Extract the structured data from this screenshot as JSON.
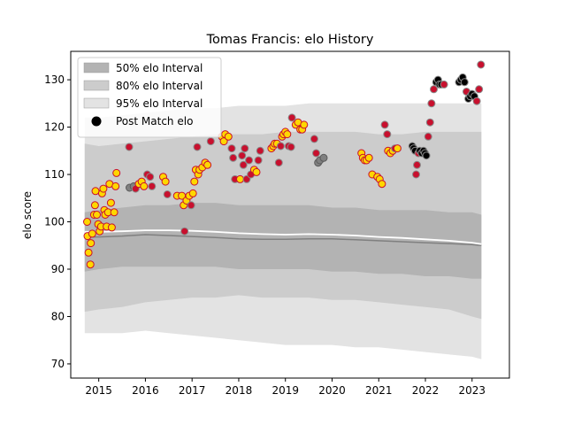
{
  "chart_data": {
    "type": "scatter",
    "title": "Tomas Francis: elo History",
    "xlabel": "",
    "ylabel": "elo score",
    "xlim": [
      2014.4,
      2023.8
    ],
    "ylim": [
      67,
      136
    ],
    "xticks": [
      2015,
      2016,
      2017,
      2018,
      2019,
      2020,
      2021,
      2022,
      2023
    ],
    "yticks": [
      70,
      80,
      90,
      100,
      110,
      120,
      130
    ],
    "grid": false,
    "legend_placement": "top-left",
    "legend": [
      {
        "label": "50% elo Interval",
        "color": "#b3b3b3"
      },
      {
        "label": "80% elo Interval",
        "color": "#cccccc"
      },
      {
        "label": "95% elo Interval",
        "color": "#e3e3e3"
      },
      {
        "label": "Post Match elo",
        "color": "#000000"
      }
    ],
    "colors": {
      "band95": "#e3e3e3",
      "band80": "#cccccc",
      "band50": "#b3b3b3",
      "median_line": "#808080",
      "mean_line": "#ffffff",
      "win_fill": "#ffd700",
      "loss_fill": "#c8102e",
      "neutral_fill": "#808080",
      "black_fill": "#000000"
    },
    "bands": {
      "x": [
        2014.7,
        2015.0,
        2015.5,
        2016.0,
        2016.5,
        2017.0,
        2017.5,
        2018.0,
        2018.5,
        2019.0,
        2019.5,
        2020.0,
        2020.5,
        2021.0,
        2021.5,
        2022.0,
        2022.5,
        2023.0,
        2023.2
      ],
      "lo95": [
        76.5,
        76.5,
        76.5,
        77.0,
        76.5,
        76.0,
        75.5,
        75.0,
        74.5,
        74.0,
        74.0,
        74.0,
        73.5,
        73.5,
        73.0,
        72.5,
        72.0,
        71.5,
        71.0
      ],
      "lo80": [
        81.0,
        81.5,
        82.0,
        83.0,
        83.5,
        84.0,
        84.0,
        84.5,
        84.0,
        84.0,
        84.0,
        83.5,
        83.5,
        83.0,
        82.5,
        82.0,
        81.5,
        80.0,
        79.5
      ],
      "lo50": [
        89.5,
        90.0,
        90.5,
        90.5,
        90.5,
        90.5,
        90.5,
        90.0,
        90.0,
        90.0,
        90.0,
        89.5,
        89.5,
        89.0,
        89.0,
        88.5,
        88.5,
        88.0,
        88.0
      ],
      "hi50": [
        102.0,
        102.5,
        103.0,
        103.5,
        103.5,
        104.0,
        104.0,
        103.5,
        103.5,
        103.5,
        103.5,
        103.0,
        103.0,
        102.5,
        102.5,
        102.5,
        102.0,
        102.0,
        101.5
      ],
      "hi80": [
        116.5,
        116.0,
        116.5,
        117.0,
        117.5,
        118.0,
        118.5,
        118.5,
        118.5,
        119.0,
        119.0,
        119.0,
        119.0,
        118.5,
        118.5,
        119.0,
        119.0,
        119.0,
        119.0
      ],
      "hi95": [
        122.0,
        122.0,
        122.5,
        123.0,
        123.5,
        124.0,
        124.0,
        124.5,
        124.5,
        124.5,
        125.0,
        125.0,
        125.0,
        125.0,
        125.0,
        125.0,
        125.0,
        125.0,
        125.0
      ],
      "median": [
        96.8,
        96.8,
        97.0,
        97.3,
        97.1,
        96.9,
        96.7,
        96.4,
        96.3,
        96.3,
        96.4,
        96.4,
        96.2,
        96.0,
        95.8,
        95.6,
        95.4,
        95.2,
        95.0
      ],
      "mean": [
        97.9,
        97.9,
        98.0,
        98.2,
        98.2,
        98.1,
        97.9,
        97.6,
        97.4,
        97.3,
        97.4,
        97.3,
        97.1,
        96.8,
        96.6,
        96.3,
        96.0,
        95.6,
        95.3
      ]
    },
    "series": [
      {
        "name": "Post Match elo",
        "points": [
          {
            "x": 2014.75,
            "y": 100.0,
            "c": "w"
          },
          {
            "x": 2014.76,
            "y": 97.0,
            "c": "w"
          },
          {
            "x": 2014.78,
            "y": 93.5,
            "c": "w"
          },
          {
            "x": 2014.82,
            "y": 91.0,
            "c": "w"
          },
          {
            "x": 2014.83,
            "y": 95.5,
            "c": "w"
          },
          {
            "x": 2014.86,
            "y": 97.5,
            "c": "w"
          },
          {
            "x": 2014.9,
            "y": 101.5,
            "c": "w"
          },
          {
            "x": 2014.92,
            "y": 103.5,
            "c": "w"
          },
          {
            "x": 2014.93,
            "y": 106.5,
            "c": "w"
          },
          {
            "x": 2014.96,
            "y": 101.5,
            "c": "w"
          },
          {
            "x": 2014.99,
            "y": 99.5,
            "c": "w"
          },
          {
            "x": 2015.02,
            "y": 98.0,
            "c": "w"
          },
          {
            "x": 2015.05,
            "y": 99.0,
            "c": "w"
          },
          {
            "x": 2015.07,
            "y": 106.0,
            "c": "w"
          },
          {
            "x": 2015.1,
            "y": 107.0,
            "c": "w"
          },
          {
            "x": 2015.12,
            "y": 102.5,
            "c": "w"
          },
          {
            "x": 2015.14,
            "y": 101.5,
            "c": "w"
          },
          {
            "x": 2015.17,
            "y": 99.0,
            "c": "w"
          },
          {
            "x": 2015.2,
            "y": 102.0,
            "c": "w"
          },
          {
            "x": 2015.23,
            "y": 108.0,
            "c": "w"
          },
          {
            "x": 2015.26,
            "y": 104.0,
            "c": "w"
          },
          {
            "x": 2015.28,
            "y": 98.8,
            "c": "w"
          },
          {
            "x": 2015.33,
            "y": 102.0,
            "c": "w"
          },
          {
            "x": 2015.36,
            "y": 107.5,
            "c": "w"
          },
          {
            "x": 2015.38,
            "y": 110.3,
            "c": "w"
          },
          {
            "x": 2015.65,
            "y": 115.8,
            "c": "l"
          },
          {
            "x": 2015.66,
            "y": 107.2,
            "c": "g"
          },
          {
            "x": 2015.75,
            "y": 107.5,
            "c": "g"
          },
          {
            "x": 2015.79,
            "y": 107.0,
            "c": "l"
          },
          {
            "x": 2015.86,
            "y": 108.0,
            "c": "w"
          },
          {
            "x": 2015.92,
            "y": 108.5,
            "c": "w"
          },
          {
            "x": 2015.97,
            "y": 107.5,
            "c": "w"
          },
          {
            "x": 2016.04,
            "y": 110.0,
            "c": "l"
          },
          {
            "x": 2016.1,
            "y": 109.5,
            "c": "l"
          },
          {
            "x": 2016.14,
            "y": 107.5,
            "c": "l"
          },
          {
            "x": 2016.38,
            "y": 109.5,
            "c": "w"
          },
          {
            "x": 2016.43,
            "y": 108.5,
            "c": "w"
          },
          {
            "x": 2016.47,
            "y": 105.8,
            "c": "l"
          },
          {
            "x": 2016.68,
            "y": 105.5,
            "c": "w"
          },
          {
            "x": 2016.78,
            "y": 105.5,
            "c": "w"
          },
          {
            "x": 2016.82,
            "y": 103.5,
            "c": "w"
          },
          {
            "x": 2016.84,
            "y": 98.0,
            "c": "l"
          },
          {
            "x": 2016.88,
            "y": 104.5,
            "c": "w"
          },
          {
            "x": 2016.94,
            "y": 105.5,
            "c": "w"
          },
          {
            "x": 2016.98,
            "y": 103.5,
            "c": "l"
          },
          {
            "x": 2017.02,
            "y": 106.0,
            "c": "w"
          },
          {
            "x": 2017.05,
            "y": 108.5,
            "c": "w"
          },
          {
            "x": 2017.08,
            "y": 111.0,
            "c": "w"
          },
          {
            "x": 2017.11,
            "y": 115.8,
            "c": "l"
          },
          {
            "x": 2017.13,
            "y": 110.0,
            "c": "w"
          },
          {
            "x": 2017.16,
            "y": 111.0,
            "c": "w"
          },
          {
            "x": 2017.22,
            "y": 111.5,
            "c": "w"
          },
          {
            "x": 2017.28,
            "y": 112.5,
            "c": "w"
          },
          {
            "x": 2017.33,
            "y": 112.0,
            "c": "w"
          },
          {
            "x": 2017.4,
            "y": 117.0,
            "c": "l"
          },
          {
            "x": 2017.64,
            "y": 118.0,
            "c": "w"
          },
          {
            "x": 2017.68,
            "y": 117.0,
            "c": "w"
          },
          {
            "x": 2017.71,
            "y": 118.5,
            "c": "w"
          },
          {
            "x": 2017.78,
            "y": 118.0,
            "c": "w"
          },
          {
            "x": 2017.85,
            "y": 115.5,
            "c": "l"
          },
          {
            "x": 2017.88,
            "y": 113.5,
            "c": "l"
          },
          {
            "x": 2017.92,
            "y": 109.0,
            "c": "l"
          },
          {
            "x": 2018.03,
            "y": 109.0,
            "c": "w"
          },
          {
            "x": 2018.07,
            "y": 114.0,
            "c": "l"
          },
          {
            "x": 2018.1,
            "y": 112.0,
            "c": "l"
          },
          {
            "x": 2018.13,
            "y": 115.5,
            "c": "l"
          },
          {
            "x": 2018.17,
            "y": 109.0,
            "c": "l"
          },
          {
            "x": 2018.22,
            "y": 113.0,
            "c": "l"
          },
          {
            "x": 2018.26,
            "y": 110.0,
            "c": "l"
          },
          {
            "x": 2018.33,
            "y": 111.0,
            "c": "w"
          },
          {
            "x": 2018.38,
            "y": 110.5,
            "c": "w"
          },
          {
            "x": 2018.42,
            "y": 113.0,
            "c": "l"
          },
          {
            "x": 2018.46,
            "y": 115.0,
            "c": "l"
          },
          {
            "x": 2018.7,
            "y": 115.5,
            "c": "w"
          },
          {
            "x": 2018.74,
            "y": 116.0,
            "c": "w"
          },
          {
            "x": 2018.77,
            "y": 116.5,
            "c": "w"
          },
          {
            "x": 2018.82,
            "y": 116.5,
            "c": "w"
          },
          {
            "x": 2018.86,
            "y": 112.5,
            "c": "l"
          },
          {
            "x": 2018.9,
            "y": 116.0,
            "c": "l"
          },
          {
            "x": 2018.93,
            "y": 118.0,
            "c": "w"
          },
          {
            "x": 2018.96,
            "y": 118.5,
            "c": "w"
          },
          {
            "x": 2019.0,
            "y": 119.0,
            "c": "w"
          },
          {
            "x": 2019.04,
            "y": 118.5,
            "c": "w"
          },
          {
            "x": 2019.07,
            "y": 116.0,
            "c": "l"
          },
          {
            "x": 2019.12,
            "y": 115.8,
            "c": "l"
          },
          {
            "x": 2019.14,
            "y": 122.0,
            "c": "l"
          },
          {
            "x": 2019.22,
            "y": 120.5,
            "c": "w"
          },
          {
            "x": 2019.27,
            "y": 121.0,
            "c": "w"
          },
          {
            "x": 2019.32,
            "y": 119.5,
            "c": "w"
          },
          {
            "x": 2019.36,
            "y": 119.5,
            "c": "w"
          },
          {
            "x": 2019.4,
            "y": 120.5,
            "c": "w"
          },
          {
            "x": 2019.62,
            "y": 117.5,
            "c": "l"
          },
          {
            "x": 2019.66,
            "y": 114.5,
            "c": "l"
          },
          {
            "x": 2019.7,
            "y": 112.5,
            "c": "g"
          },
          {
            "x": 2019.74,
            "y": 113.0,
            "c": "g"
          },
          {
            "x": 2019.82,
            "y": 113.5,
            "c": "g"
          },
          {
            "x": 2020.63,
            "y": 114.5,
            "c": "w"
          },
          {
            "x": 2020.66,
            "y": 113.5,
            "c": "w"
          },
          {
            "x": 2020.7,
            "y": 113.0,
            "c": "w"
          },
          {
            "x": 2020.74,
            "y": 113.0,
            "c": "w"
          },
          {
            "x": 2020.79,
            "y": 113.5,
            "c": "w"
          },
          {
            "x": 2020.86,
            "y": 110.0,
            "c": "w"
          },
          {
            "x": 2020.97,
            "y": 109.5,
            "c": "w"
          },
          {
            "x": 2021.02,
            "y": 109.0,
            "c": "w"
          },
          {
            "x": 2021.07,
            "y": 108.0,
            "c": "w"
          },
          {
            "x": 2021.13,
            "y": 120.5,
            "c": "l"
          },
          {
            "x": 2021.18,
            "y": 118.5,
            "c": "l"
          },
          {
            "x": 2021.2,
            "y": 115.0,
            "c": "w"
          },
          {
            "x": 2021.25,
            "y": 114.5,
            "c": "w"
          },
          {
            "x": 2021.3,
            "y": 115.0,
            "c": "w"
          },
          {
            "x": 2021.35,
            "y": 115.5,
            "c": "l"
          },
          {
            "x": 2021.4,
            "y": 115.5,
            "c": "w"
          },
          {
            "x": 2021.72,
            "y": 116.0,
            "c": "k"
          },
          {
            "x": 2021.75,
            "y": 115.5,
            "c": "k"
          },
          {
            "x": 2021.78,
            "y": 115.0,
            "c": "k"
          },
          {
            "x": 2021.8,
            "y": 110.0,
            "c": "l"
          },
          {
            "x": 2021.82,
            "y": 112.0,
            "c": "l"
          },
          {
            "x": 2021.85,
            "y": 114.5,
            "c": "l"
          },
          {
            "x": 2021.88,
            "y": 115.0,
            "c": "k"
          },
          {
            "x": 2021.92,
            "y": 114.5,
            "c": "k"
          },
          {
            "x": 2021.96,
            "y": 115.0,
            "c": "k"
          },
          {
            "x": 2021.99,
            "y": 114.5,
            "c": "k"
          },
          {
            "x": 2022.02,
            "y": 114.0,
            "c": "k"
          },
          {
            "x": 2022.06,
            "y": 118.0,
            "c": "l"
          },
          {
            "x": 2022.1,
            "y": 121.0,
            "c": "l"
          },
          {
            "x": 2022.13,
            "y": 125.0,
            "c": "l"
          },
          {
            "x": 2022.18,
            "y": 128.0,
            "c": "l"
          },
          {
            "x": 2022.23,
            "y": 129.5,
            "c": "k"
          },
          {
            "x": 2022.27,
            "y": 130.0,
            "c": "k"
          },
          {
            "x": 2022.3,
            "y": 129.0,
            "c": "k"
          },
          {
            "x": 2022.34,
            "y": 129.0,
            "c": "k"
          },
          {
            "x": 2022.4,
            "y": 129.0,
            "c": "l"
          },
          {
            "x": 2022.72,
            "y": 129.5,
            "c": "k"
          },
          {
            "x": 2022.76,
            "y": 130.0,
            "c": "k"
          },
          {
            "x": 2022.8,
            "y": 130.5,
            "c": "k"
          },
          {
            "x": 2022.84,
            "y": 129.5,
            "c": "k"
          },
          {
            "x": 2022.88,
            "y": 127.5,
            "c": "l"
          },
          {
            "x": 2022.92,
            "y": 126.0,
            "c": "k"
          },
          {
            "x": 2022.96,
            "y": 126.5,
            "c": "k"
          },
          {
            "x": 2023.0,
            "y": 127.0,
            "c": "k"
          },
          {
            "x": 2023.05,
            "y": 126.5,
            "c": "k"
          },
          {
            "x": 2023.1,
            "y": 125.5,
            "c": "l"
          },
          {
            "x": 2023.15,
            "y": 128.0,
            "c": "l"
          },
          {
            "x": 2023.19,
            "y": 133.2,
            "c": "l"
          }
        ]
      }
    ]
  }
}
